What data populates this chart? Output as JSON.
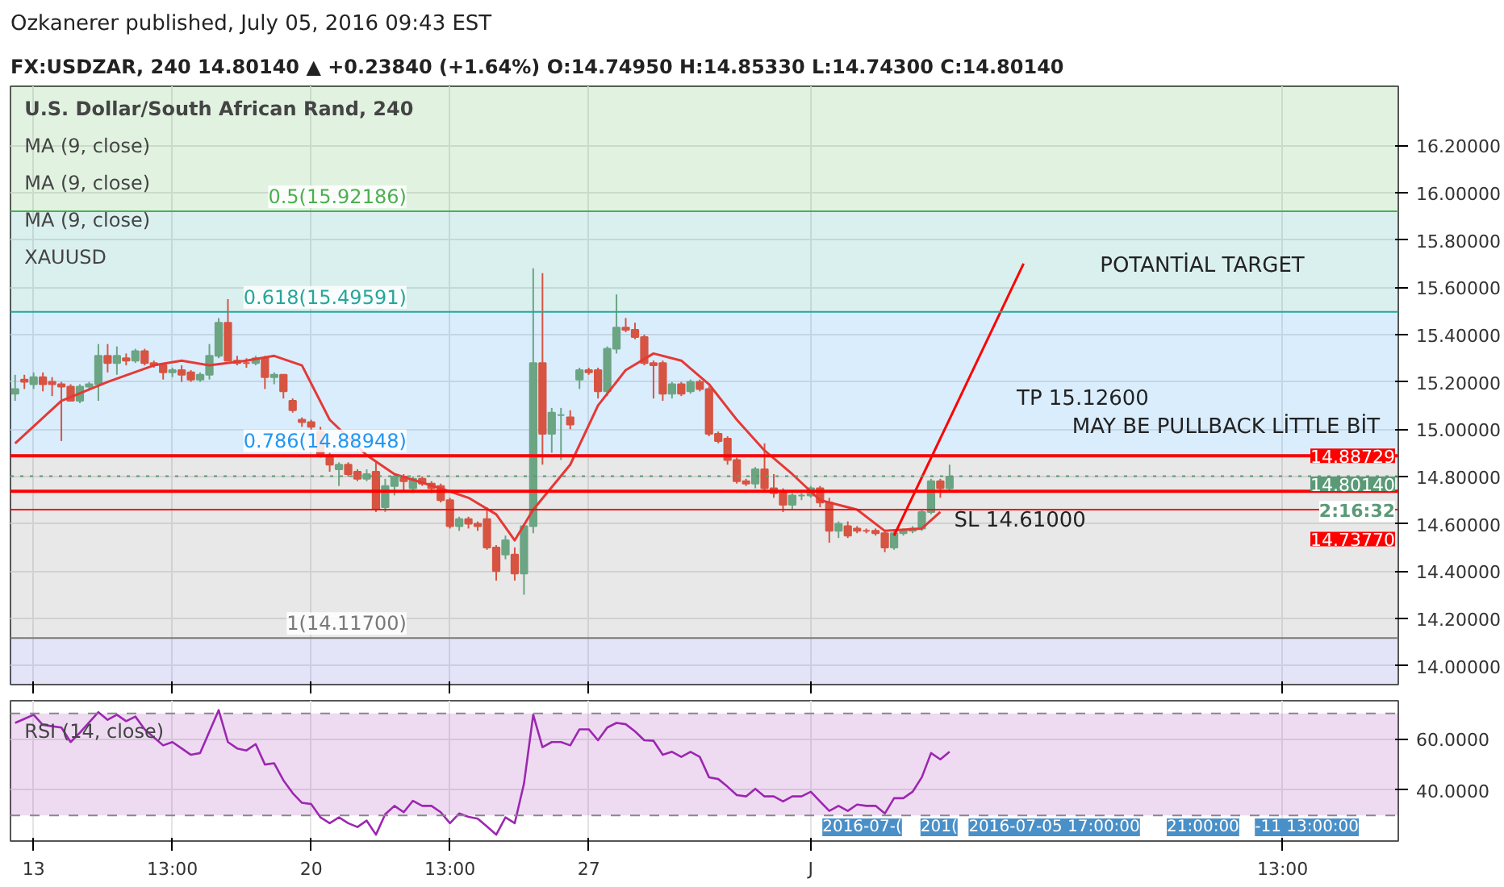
{
  "chart_data": [
    {
      "type": "candlestick",
      "title": "Ozkanerer published, July 05, 2016 09:43 EST",
      "subtitle": "FX:USDZAR, 240  14.80140 ▲ +0.23840 (+1.64%)  O:14.74950  H:14.85330  L:14.74300  C:14.80140",
      "categories": [
        null,
        null,
        null,
        null,
        null,
        null,
        null,
        null,
        null,
        null,
        null,
        null,
        null,
        null,
        null,
        null,
        null,
        null,
        null,
        null,
        null,
        null,
        null,
        null,
        null,
        null,
        null,
        null,
        null,
        null,
        null,
        null,
        null,
        null,
        null,
        null,
        null,
        null,
        null,
        null,
        null,
        null,
        null,
        null,
        null,
        null,
        null,
        null,
        null,
        null,
        null,
        null,
        null,
        null,
        null,
        null,
        null,
        null,
        null,
        null,
        null,
        null,
        null,
        null,
        null,
        null,
        null,
        null,
        null,
        null,
        null,
        null,
        null,
        null,
        null,
        null,
        null,
        null,
        null,
        null,
        null,
        null,
        null,
        null,
        null,
        null,
        null,
        null,
        null,
        null,
        null,
        null,
        null,
        null,
        null,
        null,
        null,
        null,
        null,
        null,
        null,
        null,
        null,
        null,
        null,
        null,
        null,
        null,
        null,
        null,
        null,
        null,
        null,
        null,
        null,
        null,
        null,
        null,
        null,
        null,
        null,
        null,
        null,
        null,
        null,
        null,
        null,
        null,
        null,
        null,
        null,
        null,
        null,
        null,
        null,
        null,
        null,
        null,
        null,
        null,
        null,
        null,
        null,
        null,
        null,
        null,
        null,
        null,
        null,
        null
      ],
      "ohlc": [
        [
          15.15,
          15.23,
          15.12,
          15.17
        ],
        [
          15.21,
          15.23,
          15.17,
          15.2
        ],
        [
          15.19,
          15.24,
          15.17,
          15.22
        ],
        [
          15.22,
          15.24,
          15.16,
          15.19
        ],
        [
          15.2,
          15.22,
          15.14,
          15.19
        ],
        [
          15.19,
          15.2,
          14.95,
          15.18
        ],
        [
          15.18,
          15.19,
          15.12,
          15.12
        ],
        [
          15.12,
          15.19,
          15.11,
          15.18
        ],
        [
          15.18,
          15.2,
          15.17,
          15.19
        ],
        [
          15.19,
          15.36,
          15.12,
          15.31
        ],
        [
          15.31,
          15.36,
          15.24,
          15.28
        ],
        [
          15.28,
          15.35,
          15.23,
          15.31
        ],
        [
          15.3,
          15.32,
          15.27,
          15.29
        ],
        [
          15.29,
          15.34,
          15.28,
          15.33
        ],
        [
          15.33,
          15.34,
          15.27,
          15.28
        ],
        [
          15.28,
          15.29,
          15.26,
          15.27
        ],
        [
          15.27,
          15.28,
          15.21,
          15.24
        ],
        [
          15.24,
          15.26,
          15.22,
          15.25
        ],
        [
          15.25,
          15.27,
          15.2,
          15.23
        ],
        [
          15.24,
          15.25,
          15.2,
          15.21
        ],
        [
          15.21,
          15.24,
          15.2,
          15.23
        ],
        [
          15.23,
          15.36,
          15.21,
          15.31
        ],
        [
          15.31,
          15.47,
          15.3,
          15.45
        ],
        [
          15.45,
          15.55,
          15.29,
          15.29
        ],
        [
          15.29,
          15.31,
          15.27,
          15.28
        ],
        [
          15.28,
          15.3,
          15.26,
          15.28
        ],
        [
          15.28,
          15.31,
          15.27,
          15.3
        ],
        [
          15.3,
          15.31,
          15.17,
          15.22
        ],
        [
          15.22,
          15.24,
          15.19,
          15.23
        ],
        [
          15.23,
          15.23,
          15.13,
          15.16
        ],
        [
          15.12,
          15.13,
          15.07,
          15.08
        ],
        [
          15.04,
          15.05,
          15.01,
          15.03
        ],
        [
          15.03,
          15.04,
          14.99,
          15.01
        ],
        [
          14.99,
          15.01,
          14.88,
          14.89
        ],
        [
          14.89,
          14.9,
          14.82,
          14.85
        ],
        [
          14.83,
          14.86,
          14.76,
          14.85
        ],
        [
          14.85,
          14.86,
          14.8,
          14.81
        ],
        [
          14.82,
          14.83,
          14.78,
          14.79
        ],
        [
          14.79,
          14.83,
          14.78,
          14.81
        ],
        [
          14.82,
          14.86,
          14.65,
          14.66
        ],
        [
          14.67,
          14.79,
          14.65,
          14.76
        ],
        [
          14.76,
          14.81,
          14.72,
          14.8
        ],
        [
          14.8,
          14.81,
          14.74,
          14.78
        ],
        [
          14.75,
          14.8,
          14.73,
          14.79
        ],
        [
          14.79,
          14.8,
          14.76,
          14.77
        ],
        [
          14.77,
          14.78,
          14.73,
          14.75
        ],
        [
          14.76,
          14.77,
          14.69,
          14.7
        ],
        [
          14.7,
          14.71,
          14.58,
          14.59
        ],
        [
          14.59,
          14.63,
          14.57,
          14.62
        ],
        [
          14.62,
          14.63,
          14.58,
          14.6
        ],
        [
          14.6,
          14.61,
          14.57,
          14.59
        ],
        [
          14.62,
          14.67,
          14.49,
          14.5
        ],
        [
          14.5,
          14.51,
          14.36,
          14.4
        ],
        [
          14.47,
          14.55,
          14.45,
          14.53
        ],
        [
          14.47,
          14.5,
          14.36,
          14.39
        ],
        [
          14.39,
          14.6,
          14.3,
          14.59
        ],
        [
          14.59,
          15.68,
          14.56,
          15.28
        ],
        [
          15.28,
          15.66,
          14.85,
          14.98
        ],
        [
          14.98,
          15.09,
          14.9,
          15.07
        ],
        [
          15.06,
          15.09,
          14.87,
          15.06
        ],
        [
          15.05,
          15.08,
          15.0,
          15.02
        ],
        [
          15.21,
          15.26,
          15.17,
          15.25
        ],
        [
          15.25,
          15.26,
          15.23,
          15.24
        ],
        [
          15.25,
          15.26,
          15.13,
          15.16
        ],
        [
          15.16,
          15.35,
          15.14,
          15.34
        ],
        [
          15.34,
          15.57,
          15.32,
          15.43
        ],
        [
          15.43,
          15.47,
          15.41,
          15.42
        ],
        [
          15.42,
          15.45,
          15.38,
          15.39
        ],
        [
          15.39,
          15.4,
          15.27,
          15.28
        ],
        [
          15.28,
          15.29,
          15.13,
          15.27
        ],
        [
          15.28,
          15.29,
          15.12,
          15.15
        ],
        [
          15.15,
          15.2,
          15.13,
          15.19
        ],
        [
          15.19,
          15.2,
          15.14,
          15.15
        ],
        [
          15.16,
          15.21,
          15.15,
          15.2
        ],
        [
          15.2,
          15.21,
          15.16,
          15.17
        ],
        [
          15.17,
          15.18,
          14.97,
          14.98
        ],
        [
          14.98,
          14.99,
          14.94,
          14.95
        ],
        [
          14.96,
          14.97,
          14.85,
          14.87
        ],
        [
          14.87,
          14.88,
          14.77,
          14.78
        ],
        [
          14.78,
          14.79,
          14.76,
          14.77
        ],
        [
          14.77,
          14.84,
          14.75,
          14.83
        ],
        [
          14.83,
          14.94,
          14.74,
          14.75
        ],
        [
          14.75,
          14.81,
          14.71,
          14.73
        ],
        [
          14.73,
          14.75,
          14.65,
          14.68
        ],
        [
          14.68,
          14.73,
          14.66,
          14.72
        ],
        [
          14.72,
          14.73,
          14.7,
          14.72
        ],
        [
          14.72,
          14.76,
          14.71,
          14.75
        ],
        [
          14.75,
          14.76,
          14.67,
          14.69
        ],
        [
          14.69,
          14.71,
          14.52,
          14.57
        ],
        [
          14.57,
          14.61,
          14.54,
          14.6
        ],
        [
          14.59,
          14.61,
          14.54,
          14.55
        ],
        [
          14.58,
          14.59,
          14.56,
          14.57
        ],
        [
          14.57,
          14.58,
          14.56,
          14.57
        ],
        [
          14.57,
          14.58,
          14.55,
          14.56
        ],
        [
          14.56,
          14.57,
          14.48,
          14.5
        ],
        [
          14.5,
          14.57,
          14.49,
          14.56
        ],
        [
          14.56,
          14.58,
          14.55,
          14.57
        ],
        [
          14.57,
          14.59,
          14.56,
          14.58
        ],
        [
          14.58,
          14.66,
          14.57,
          14.65
        ],
        [
          14.65,
          14.79,
          14.64,
          14.78
        ],
        [
          14.78,
          14.79,
          14.71,
          14.75
        ],
        [
          14.75,
          14.85,
          14.74,
          14.8
        ],
        null,
        null,
        null,
        null,
        null,
        null,
        null,
        null,
        null,
        null,
        null,
        null,
        null,
        null,
        null,
        null,
        null,
        null,
        null,
        null,
        null,
        null,
        null,
        null,
        null,
        null,
        null,
        null,
        null,
        null,
        null,
        null,
        null,
        null,
        null,
        null,
        null,
        null,
        null,
        null,
        null,
        null,
        null,
        null,
        null,
        null,
        null,
        null
      ],
      "colors": [
        "#6ba583",
        "#d75442",
        "#6ba583",
        "#d75442",
        "#d75442",
        "#d75442",
        "#d75442",
        "#6ba583",
        "#6ba583",
        "#6ba583",
        "#d75442",
        "#6ba583",
        "#d75442",
        "#6ba583",
        "#d75442",
        "#d75442",
        "#d75442",
        "#6ba583",
        "#d75442",
        "#d75442",
        "#6ba583",
        "#6ba583",
        "#6ba583",
        "#d75442",
        "#d75442",
        "#d75442",
        "#6ba583",
        "#d75442",
        "#6ba583",
        "#d75442",
        "#d75442",
        "#d75442",
        "#d75442",
        "#d75442",
        "#d75442",
        "#6ba583",
        "#d75442",
        "#d75442",
        "#6ba583",
        "#d75442",
        "#6ba583",
        "#6ba583",
        "#d75442",
        "#6ba583",
        "#d75442",
        "#d75442",
        "#d75442",
        "#d75442",
        "#6ba583",
        "#d75442",
        "#d75442",
        "#d75442",
        "#d75442",
        "#6ba583",
        "#d75442",
        "#6ba583",
        "#6ba583",
        "#d75442",
        "#6ba583",
        "#6ba583",
        "#d75442",
        "#6ba583",
        "#d75442",
        "#d75442",
        "#6ba583",
        "#6ba583",
        "#d75442",
        "#d75442",
        "#d75442",
        "#d75442",
        "#d75442",
        "#6ba583",
        "#d75442",
        "#6ba583",
        "#d75442",
        "#d75442",
        "#d75442",
        "#d75442",
        "#d75442",
        "#d75442",
        "#6ba583",
        "#d75442",
        "#d75442",
        "#d75442",
        "#6ba583",
        "#6ba583",
        "#6ba583",
        "#d75442",
        "#d75442",
        "#6ba583",
        "#d75442",
        "#d75442",
        "#d75442",
        "#d75442",
        "#d75442",
        "#6ba583",
        "#6ba583",
        "#6ba583",
        "#6ba583",
        "#6ba583",
        "#d75442",
        "#6ba583",
        null,
        null,
        null,
        null,
        null,
        null,
        null,
        null,
        null,
        null,
        null,
        null,
        null,
        null,
        null,
        null,
        null,
        null,
        null,
        null,
        null,
        null,
        null,
        null,
        null,
        null,
        null,
        null,
        null,
        null,
        null,
        null,
        null,
        null,
        null,
        null,
        null,
        null,
        null,
        null,
        null,
        null,
        null,
        null,
        null,
        null,
        null,
        null
      ],
      "series": [
        {
          "type": "line",
          "color": "#e53935",
          "values": [
            14.94,
            null,
            null,
            null,
            null,
            15.12,
            null,
            null,
            null,
            null,
            15.2,
            null,
            null,
            null,
            null,
            15.27,
            null,
            null,
            15.29,
            null,
            null,
            15.27,
            null,
            null,
            null,
            15.29,
            null,
            null,
            15.31,
            null,
            null,
            15.27,
            null,
            null,
            15.04,
            null,
            null,
            null,
            14.89,
            null,
            null,
            14.81,
            null,
            null,
            null,
            null,
            14.75,
            null,
            null,
            14.71,
            null,
            null,
            14.64,
            null,
            14.53,
            null,
            14.66,
            null,
            null,
            null,
            14.85,
            null,
            null,
            15.1,
            null,
            null,
            15.25,
            null,
            null,
            15.32,
            null,
            null,
            15.29,
            null,
            null,
            15.19,
            null,
            null,
            15.04,
            null,
            null,
            14.91,
            null,
            null,
            14.81,
            null,
            null,
            14.7,
            null,
            null,
            null,
            14.66,
            null,
            null,
            14.57,
            null,
            null,
            null,
            14.58,
            null,
            14.65,
            null,
            null,
            null,
            null,
            null,
            null,
            null,
            null,
            null,
            null,
            null,
            null,
            null,
            null,
            null,
            null,
            null,
            null,
            null,
            null,
            null,
            null,
            null,
            null,
            null,
            null,
            null,
            null,
            null,
            null,
            null,
            null,
            null,
            null,
            null,
            null,
            null,
            null,
            null,
            null,
            null,
            null,
            null,
            null,
            null,
            null,
            null,
            null,
            null
          ]
        },
        {
          "type": "line",
          "color": "#ff0000",
          "values": [
            null,
            null,
            null,
            null,
            null,
            null,
            null,
            null,
            null,
            null,
            null,
            null,
            null,
            null,
            null,
            null,
            null,
            null,
            null,
            null,
            null,
            null,
            null,
            null,
            null,
            null,
            null,
            null,
            null,
            null,
            null,
            null,
            null,
            null,
            null,
            null,
            null,
            null,
            null,
            null,
            null,
            null,
            null,
            null,
            null,
            null,
            null,
            null,
            null,
            null,
            null,
            null,
            null,
            null,
            null,
            null,
            null,
            null,
            null,
            null,
            null,
            null,
            null,
            null,
            null,
            null,
            null,
            null,
            null,
            null,
            null,
            null,
            null,
            null,
            null,
            null,
            null,
            null,
            null,
            null,
            null,
            null,
            null,
            null,
            null,
            null,
            null,
            null,
            null,
            null,
            null,
            null,
            null,
            null,
            null,
            14.55,
            null,
            null,
            null,
            null,
            null,
            null,
            null,
            null,
            null,
            null,
            null,
            null,
            null,
            15.7,
            null,
            null,
            null,
            null,
            null,
            null,
            null,
            null,
            null,
            null,
            null,
            null,
            null,
            null,
            null,
            null,
            null,
            null,
            null,
            null,
            null,
            null,
            null,
            null,
            null,
            null,
            null,
            null,
            null,
            null,
            null,
            null,
            null,
            null,
            null,
            null,
            null,
            null,
            null,
            null
          ]
        }
      ],
      "ylim": [
        13.92,
        16.45
      ],
      "yticks": [
        {
          "value": 14.0,
          "label": "14.00000"
        },
        {
          "value": 14.2,
          "label": "14.20000"
        },
        {
          "value": 14.4,
          "label": "14.40000"
        },
        {
          "value": 14.6,
          "label": "14.60000"
        },
        {
          "value": 14.8,
          "label": "14.80000"
        },
        {
          "value": 15.0,
          "label": "15.00000"
        },
        {
          "value": 15.2,
          "label": "15.20000"
        },
        {
          "value": 15.4,
          "label": "15.40000"
        },
        {
          "value": 15.6,
          "label": "15.60000"
        },
        {
          "value": 15.8,
          "label": "15.80000"
        },
        {
          "value": 16.0,
          "label": "16.00000"
        },
        {
          "value": 16.2,
          "label": "16.20000"
        }
      ],
      "tick_labels": "y",
      "grid": true,
      "bands": [
        {
          "axis": "y",
          "from": 15.92186,
          "to": 16.45,
          "label": "0.5(15.92186)",
          "color": "#4caf50"
        },
        {
          "axis": "y",
          "from": 15.49591,
          "to": 15.92186,
          "label": "0.618(15.49591)",
          "color": "#26a69a"
        },
        {
          "axis": "y",
          "from": 14.88948,
          "to": 15.49591,
          "label": "0.786(14.88948)",
          "color": "#2196f3"
        },
        {
          "axis": "y",
          "from": 14.117,
          "to": 14.88948,
          "label": "1(14.11700)",
          "color": "#787878"
        },
        {
          "axis": "y",
          "from": 13.92,
          "to": 14.117,
          "color": "#5c5cd6"
        }
      ],
      "ref_lines": [
        {
          "axis": "y",
          "value": 15.92186,
          "color": "#4caf50"
        },
        {
          "axis": "y",
          "value": 15.49591,
          "color": "#26a69a"
        },
        {
          "axis": "y",
          "value": 14.88948,
          "color": "#2196f3"
        },
        {
          "axis": "y",
          "value": 14.117,
          "color": "#787878"
        },
        {
          "axis": "y",
          "value": 14.88729,
          "label": "14.88729",
          "color": "#ff0000"
        },
        {
          "axis": "y",
          "value": 14.7377,
          "label": "14.73770",
          "color": "#ff0000"
        },
        {
          "axis": "y",
          "value": 14.66,
          "color": "#ff0000"
        },
        {
          "axis": "y",
          "value": 14.8014,
          "label": "14.80140",
          "color": "#5b9a76",
          "line_style": "dotted"
        }
      ],
      "annotations": [
        "U.S. Dollar/South African Rand, 240",
        "MA (9, close)",
        "MA (9, close)",
        "MA (9, close)",
        "XAUUSD",
        "POTANTİAL TARGET",
        "TP  15.12600",
        "MAY BE PULLBACK LİTTLE BİT",
        "SL 14.61000",
        "2:16:32"
      ]
    },
    {
      "type": "line",
      "title": "RSI (14, close)",
      "color": "#9c27b0",
      "categories": [
        null,
        null,
        "13",
        null,
        null,
        null,
        null,
        null,
        null,
        null,
        null,
        null,
        null,
        null,
        null,
        null,
        null,
        "13:00",
        null,
        null,
        null,
        null,
        null,
        null,
        null,
        null,
        null,
        null,
        null,
        null,
        null,
        null,
        "20",
        null,
        null,
        null,
        null,
        null,
        null,
        null,
        null,
        null,
        null,
        null,
        null,
        null,
        null,
        "13:00",
        null,
        null,
        null,
        null,
        null,
        null,
        null,
        null,
        null,
        null,
        null,
        null,
        null,
        null,
        "27",
        null,
        null,
        null,
        null,
        null,
        null,
        null,
        null,
        null,
        null,
        null,
        null,
        null,
        null,
        null,
        null,
        null,
        null,
        null,
        null,
        null,
        null,
        null,
        "J",
        null,
        null,
        null,
        null,
        null,
        null,
        null,
        null,
        null,
        null,
        null,
        null,
        null,
        null,
        null,
        null,
        null,
        null,
        null,
        null,
        null,
        null,
        null,
        null,
        null,
        null,
        null,
        null,
        null,
        null,
        null,
        null,
        null,
        null,
        null,
        null,
        null,
        null,
        null,
        null,
        null,
        null,
        null,
        null,
        null,
        null,
        null,
        null,
        null,
        null,
        "13:00",
        null,
        null,
        null,
        null,
        null,
        null,
        null,
        null,
        null,
        null,
        null,
        null
      ],
      "values": [
        66.3,
        67.9,
        69.5,
        65.5,
        65,
        64.5,
        58.8,
        62.5,
        66.5,
        70.5,
        67.5,
        69.5,
        67,
        68.8,
        63.8,
        60.6,
        57.5,
        58.8,
        56.3,
        53.8,
        54.5,
        62.9,
        71.3,
        58.8,
        56.3,
        55.5,
        58,
        50,
        50.5,
        43.8,
        38.8,
        35,
        34.5,
        29.3,
        27,
        29.3,
        27,
        25.5,
        28,
        22.5,
        30.5,
        33.8,
        31.3,
        35.8,
        33.8,
        33.8,
        31.3,
        27,
        30.8,
        29.5,
        28.8,
        25.7,
        22.5,
        29.3,
        27,
        42.5,
        69.5,
        56.8,
        58.8,
        58.8,
        57.5,
        63.8,
        63.8,
        59.5,
        64.5,
        66.3,
        65.8,
        63,
        59.5,
        59.3,
        53.8,
        55,
        53,
        55,
        53,
        45,
        44.3,
        41.3,
        38,
        37.5,
        40.5,
        37.5,
        37.5,
        35.5,
        37.5,
        37.5,
        39.3,
        35.5,
        31.8,
        33.8,
        31.8,
        34.3,
        33.8,
        33.8,
        30.8,
        36.8,
        36.8,
        39.3,
        45,
        54.5,
        52,
        55,
        null,
        null,
        null,
        null,
        null,
        null,
        null,
        null,
        null,
        null,
        null,
        null,
        null,
        null,
        null,
        null,
        null,
        null,
        null,
        null,
        null,
        null,
        null,
        null,
        null,
        null,
        null,
        null,
        null,
        null,
        null,
        null,
        null,
        null,
        null,
        null,
        null,
        null,
        null,
        null,
        null,
        null,
        null,
        null,
        null,
        null,
        null,
        null
      ],
      "ylim": [
        20,
        75
      ],
      "yticks": [
        {
          "value": 40,
          "label": "40.0000"
        },
        {
          "value": 60,
          "label": "60.0000"
        }
      ],
      "grid": true,
      "bands": [
        {
          "axis": "y",
          "from": 30,
          "to": 70,
          "color": "#9c27b0"
        }
      ],
      "ref_lines": [
        {
          "axis": "y",
          "value": 70,
          "color": "#888888",
          "line_style": "dashed"
        },
        {
          "axis": "y",
          "value": 30,
          "color": "#888888",
          "line_style": "dashed"
        }
      ],
      "annotations": [
        "2016-07-(",
        "201(",
        "2016-07-05 17:00:00",
        "21:00:00",
        "-11 13:00:00"
      ]
    }
  ]
}
